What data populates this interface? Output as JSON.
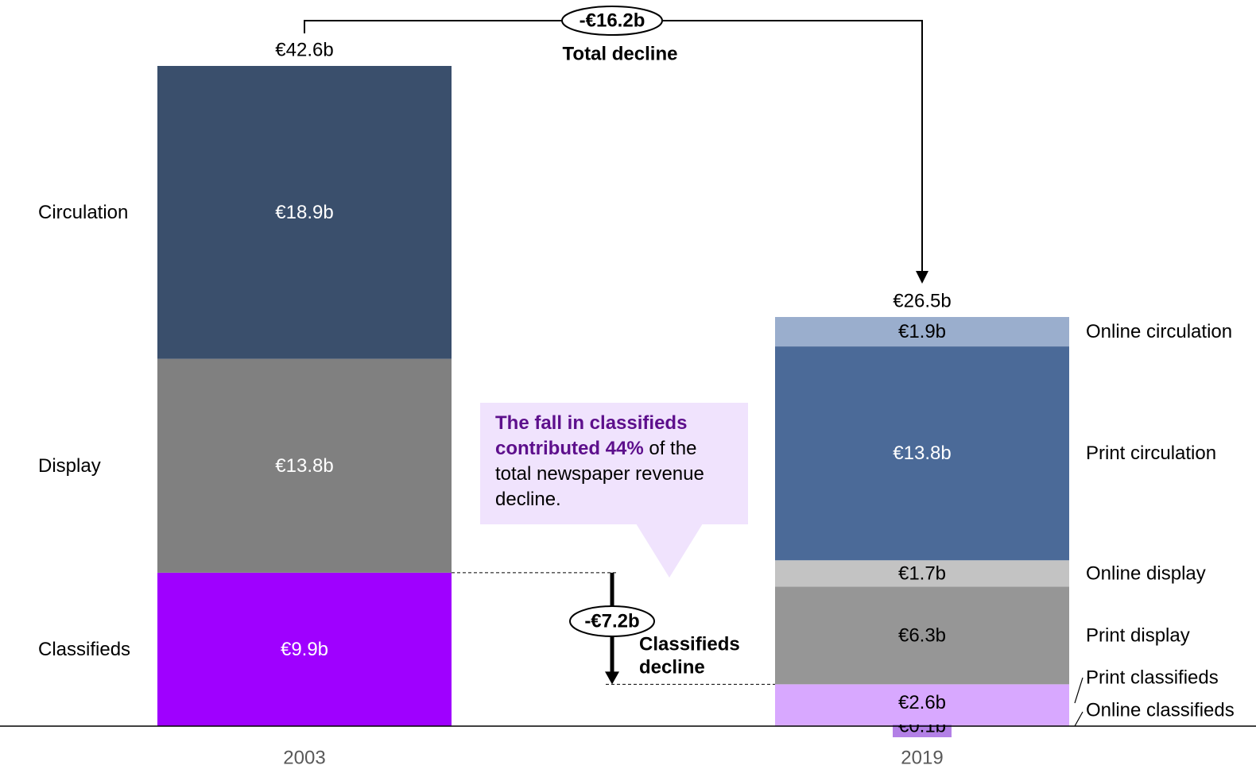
{
  "chart_data": {
    "type": "bar",
    "subtype": "stacked",
    "categories": [
      "2003",
      "2019"
    ],
    "unit": "€b",
    "bars": [
      {
        "year": "2003",
        "total": 42.6,
        "total_label": "€42.6b",
        "segments": [
          {
            "name": "Classifieds",
            "value": 9.9,
            "label": "€9.9b",
            "color": "#9f00ff",
            "text_color": "#ffffff"
          },
          {
            "name": "Display",
            "value": 13.8,
            "label": "€13.8b",
            "color": "#808080",
            "text_color": "#ffffff"
          },
          {
            "name": "Circulation",
            "value": 18.9,
            "label": "€18.9b",
            "color": "#3a4f6c",
            "text_color": "#ffffff"
          }
        ]
      },
      {
        "year": "2019",
        "total": 26.5,
        "total_label": "€26.5b",
        "segments": [
          {
            "name": "Online classifieds",
            "value": 0.1,
            "label": "€0.1b",
            "color": "#d8a8ff",
            "text_color": "#000000"
          },
          {
            "name": "Print classifieds",
            "value": 2.6,
            "label": "€2.6b",
            "color": "#d8a8ff",
            "text_color": "#000000"
          },
          {
            "name": "Print display",
            "value": 6.3,
            "label": "€6.3b",
            "color": "#969696",
            "text_color": "#000000"
          },
          {
            "name": "Online display",
            "value": 1.7,
            "label": "€1.7b",
            "color": "#c3c3c3",
            "text_color": "#000000"
          },
          {
            "name": "Print circulation",
            "value": 13.8,
            "label": "€13.8b",
            "color": "#4b6a98",
            "text_color": "#ffffff"
          },
          {
            "name": "Online circulation",
            "value": 1.9,
            "label": "€1.9b",
            "color": "#9aaecd",
            "text_color": "#000000"
          }
        ]
      }
    ],
    "highlight_color": "#b380e6",
    "annotations": {
      "total_decline": {
        "value": "-€16.2b",
        "label": "Total decline"
      },
      "classifieds_decline": {
        "value": "-€7.2b",
        "label_line1": "Classifieds",
        "label_line2": "decline"
      }
    },
    "ylim": [
      0,
      42.6
    ]
  },
  "callout": {
    "highlight_line1": "The fall in classifieds",
    "highlight_line2": "contributed 44%",
    "rest_line2": " of the",
    "line3": "total newspaper revenue",
    "line4": "decline."
  }
}
